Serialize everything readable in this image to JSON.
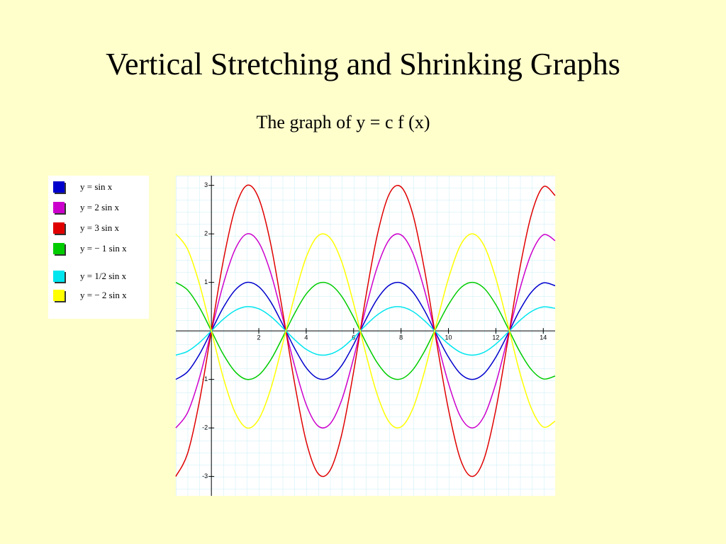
{
  "chart_data": {
    "type": "line",
    "title": "Vertical Stretching and Shrinking Graphs",
    "subtitle": "The graph of y = c f (x)",
    "x": [
      -1.5,
      -1,
      -0.5,
      0,
      0.5,
      1,
      1.5,
      2,
      2.5,
      3,
      3.5,
      4,
      4.5,
      5,
      5.5,
      6,
      6.5,
      7,
      7.5,
      8,
      8.5,
      9,
      9.5,
      10,
      10.5,
      11,
      11.5,
      12,
      12.5,
      13,
      13.5,
      14,
      14.5
    ],
    "series": [
      {
        "name": "y = sin x",
        "color": "#0000cc",
        "values": [
          -1,
          -0.84,
          -0.48,
          0,
          0.48,
          0.84,
          1,
          0.91,
          0.6,
          0.14,
          -0.35,
          -0.76,
          -0.98,
          -0.96,
          -0.71,
          -0.28,
          0.22,
          0.66,
          0.94,
          0.99,
          0.8,
          0.41,
          -0.08,
          -0.54,
          -0.88,
          -1,
          -0.88,
          -0.54,
          -0.07,
          0.42,
          0.8,
          0.99,
          0.93
        ]
      },
      {
        "name": "y = 2 sin x",
        "color": "#cc00cc",
        "values": [
          -2,
          -1.68,
          -0.96,
          0,
          0.96,
          1.68,
          2,
          1.82,
          1.2,
          0.28,
          -0.7,
          -1.52,
          -1.96,
          -1.92,
          -1.42,
          -0.56,
          0.44,
          1.32,
          1.88,
          1.98,
          1.6,
          0.82,
          -0.16,
          -1.08,
          -1.76,
          -2,
          -1.76,
          -1.08,
          -0.14,
          0.84,
          1.6,
          1.98,
          1.86
        ]
      },
      {
        "name": "y = 3 sin x",
        "color": "#e00000",
        "values": [
          -3,
          -2.52,
          -1.44,
          0,
          1.44,
          2.52,
          3,
          2.73,
          1.8,
          0.42,
          -1.05,
          -2.28,
          -2.94,
          -2.88,
          -2.13,
          -0.84,
          0.66,
          1.98,
          2.82,
          2.97,
          2.4,
          1.23,
          -0.24,
          -1.62,
          -2.64,
          -3,
          -2.64,
          -1.62,
          -0.21,
          1.26,
          2.4,
          2.97,
          2.79
        ]
      },
      {
        "name": "y = − 1 sin x",
        "color": "#00cc00",
        "values": [
          1,
          0.84,
          0.48,
          0,
          -0.48,
          -0.84,
          -1,
          -0.91,
          -0.6,
          -0.14,
          0.35,
          0.76,
          0.98,
          0.96,
          0.71,
          0.28,
          -0.22,
          -0.66,
          -0.94,
          -0.99,
          -0.8,
          -0.41,
          0.08,
          0.54,
          0.88,
          1,
          0.88,
          0.54,
          0.07,
          -0.42,
          -0.8,
          -0.99,
          -0.93
        ]
      },
      {
        "name": "y = 1/2 sin x",
        "color": "#00e5ee",
        "values": [
          -0.5,
          -0.42,
          -0.24,
          0,
          0.24,
          0.42,
          0.5,
          0.455,
          0.3,
          0.07,
          -0.175,
          -0.38,
          -0.49,
          -0.48,
          -0.355,
          -0.14,
          0.11,
          0.33,
          0.47,
          0.495,
          0.4,
          0.205,
          -0.04,
          -0.27,
          -0.44,
          -0.5,
          -0.44,
          -0.27,
          -0.035,
          0.21,
          0.4,
          0.495,
          0.465
        ]
      },
      {
        "name": "y = − 2 sin x",
        "color": "#ffff00",
        "values": [
          2,
          1.68,
          0.96,
          0,
          -0.96,
          -1.68,
          -2,
          -1.82,
          -1.2,
          -0.28,
          0.7,
          1.52,
          1.96,
          1.92,
          1.42,
          0.56,
          -0.44,
          -1.32,
          -1.88,
          -1.98,
          -1.6,
          -0.82,
          0.16,
          1.08,
          1.76,
          2,
          1.76,
          1.08,
          0.14,
          -0.84,
          -1.6,
          -1.98,
          -1.86
        ]
      }
    ],
    "xlim": [
      -1.5,
      14.5
    ],
    "ylim": [
      -3.4,
      3.2
    ],
    "xticks": [
      2,
      4,
      6,
      8,
      10,
      12,
      14
    ],
    "yticks": [
      -3,
      -2,
      -1,
      1,
      2,
      3
    ]
  }
}
